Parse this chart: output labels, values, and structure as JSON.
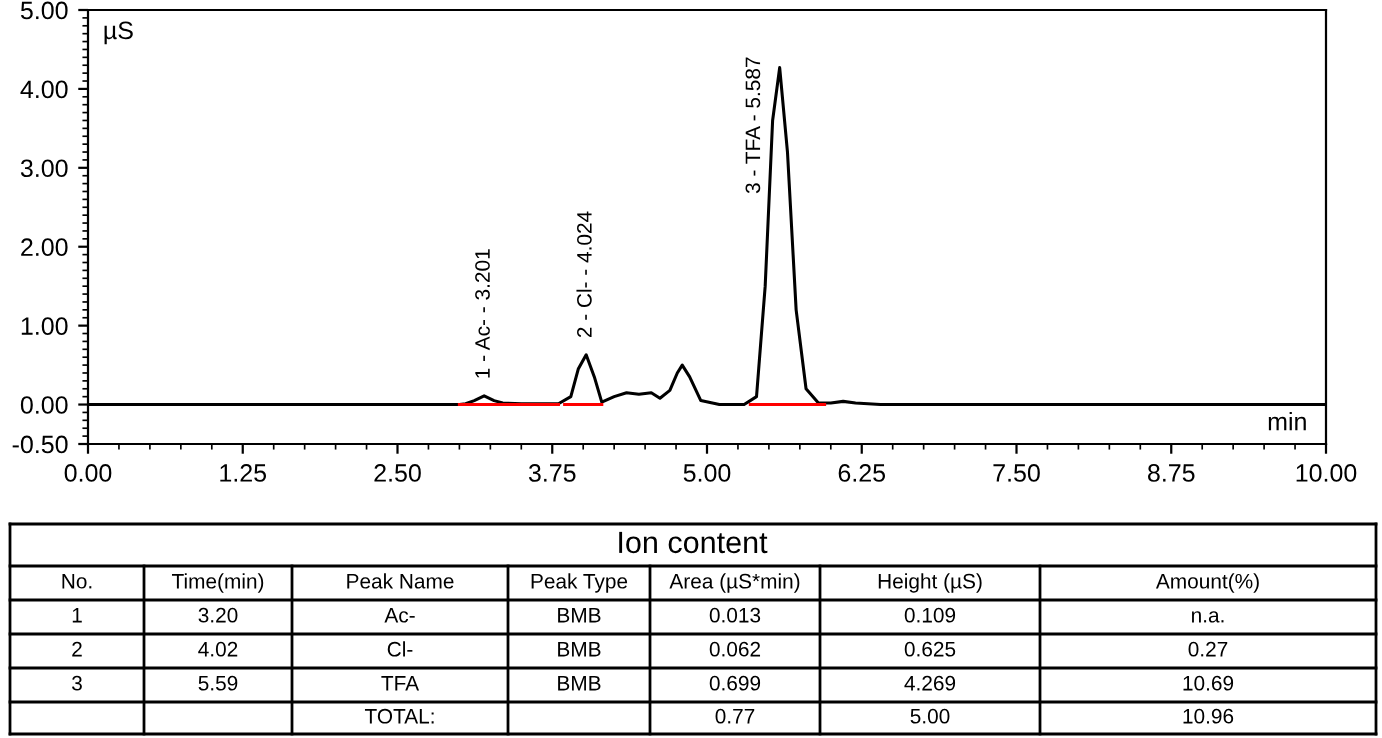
{
  "chart_data": {
    "type": "line",
    "xlabel": "min",
    "ylabel": "µS",
    "xlim": [
      0,
      10
    ],
    "ylim": [
      -0.5,
      5
    ],
    "xticks": [
      {
        "value": 0,
        "label": "0.00"
      },
      {
        "value": 1.25,
        "label": "1.25"
      },
      {
        "value": 2.5,
        "label": "2.50"
      },
      {
        "value": 3.75,
        "label": "3.75"
      },
      {
        "value": 5,
        "label": "5.00"
      },
      {
        "value": 6.25,
        "label": "6.25"
      },
      {
        "value": 7.5,
        "label": "7.50"
      },
      {
        "value": 8.75,
        "label": "8.75"
      },
      {
        "value": 10,
        "label": "10.00"
      }
    ],
    "yticks": [
      {
        "value": -0.5,
        "label": "-0.50"
      },
      {
        "value": 0,
        "label": "0.00"
      },
      {
        "value": 1,
        "label": "1.00"
      },
      {
        "value": 2,
        "label": "2.00"
      },
      {
        "value": 3,
        "label": "3.00"
      },
      {
        "value": 4,
        "label": "4.00"
      },
      {
        "value": 5,
        "label": "5.00"
      }
    ],
    "grid": false,
    "legend": false,
    "marker": "none",
    "line_style": "solid",
    "series": [
      {
        "color": "#000000",
        "x": [
          0,
          1,
          2,
          3,
          3.05,
          3.12,
          3.2,
          3.28,
          3.35,
          3.5,
          3.8,
          3.9,
          3.96,
          4.024,
          4.09,
          4.15,
          4.25,
          4.35,
          4.45,
          4.55,
          4.62,
          4.7,
          4.76,
          4.8,
          4.86,
          4.95,
          5.1,
          5.3,
          5.4,
          5.47,
          5.53,
          5.587,
          5.65,
          5.72,
          5.8,
          5.9,
          6.0,
          6.1,
          6.2,
          6.4,
          7,
          8,
          9,
          10
        ],
        "values": [
          0,
          0,
          0,
          0,
          0.01,
          0.05,
          0.11,
          0.05,
          0.02,
          0.01,
          0.01,
          0.1,
          0.45,
          0.63,
          0.35,
          0.03,
          0.1,
          0.15,
          0.13,
          0.15,
          0.08,
          0.18,
          0.4,
          0.5,
          0.35,
          0.05,
          0.0,
          0.0,
          0.1,
          1.5,
          3.6,
          4.27,
          3.2,
          1.2,
          0.2,
          0.02,
          0.02,
          0.04,
          0.02,
          0.0,
          0,
          0,
          0,
          0
        ]
      },
      {
        "color": "#ff0000",
        "x": [
          3.0,
          3.8
        ],
        "values": [
          0,
          0
        ]
      },
      {
        "color": "#ff0000",
        "x": [
          3.85,
          4.15
        ],
        "values": [
          0,
          0
        ]
      },
      {
        "color": "#ff0000",
        "x": [
          5.35,
          5.95
        ],
        "values": [
          0,
          0
        ]
      }
    ],
    "annotations": [
      {
        "text": "1 - Ac- - 3.201",
        "x": 3.201,
        "y": 0.11
      },
      {
        "text": "2 - Cl- - 4.024",
        "x": 4.024,
        "y": 0.63
      },
      {
        "text": "3 - TFA - 5.587",
        "x": 5.587,
        "y": 4.27
      },
      "Ion content",
      "No.",
      "Time(min)",
      "Peak Name",
      "Peak Type",
      "Area (µS*min)",
      "Height (µS)",
      "Amount(%)",
      "1",
      "3.20",
      "Ac-",
      "BMB",
      "0.013",
      "0.109",
      "n.a.",
      "2",
      "4.02",
      "Cl-",
      "BMB",
      "0.062",
      "0.625",
      "0.27",
      "3",
      "5.59",
      "TFA",
      "BMB",
      "0.699",
      "4.269",
      "10.69",
      "TOTAL:",
      "0.77",
      "5.00",
      "10.96"
    ]
  }
}
